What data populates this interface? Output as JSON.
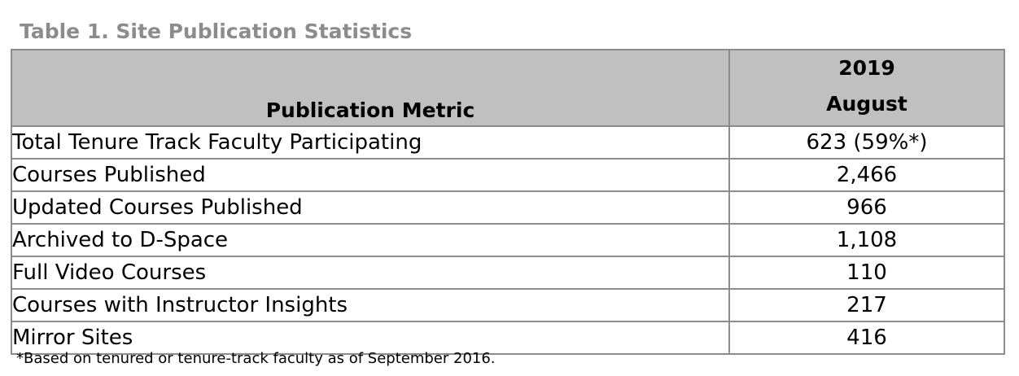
{
  "caption": "Table 1. Site Publication Statistics",
  "table": {
    "headers": {
      "metric": "Publication Metric",
      "value_year": "2019",
      "value_month": "August"
    },
    "rows": [
      {
        "metric": "Total Tenure Track Faculty Participating",
        "value": "623 (59%*)"
      },
      {
        "metric": "Courses Published",
        "value": "2,466"
      },
      {
        "metric": "Updated Courses Published",
        "value": "966"
      },
      {
        "metric": "Archived to D-Space",
        "value": "1,108"
      },
      {
        "metric": "Full Video Courses",
        "value": "110"
      },
      {
        "metric": "Courses with Instructor Insights",
        "value": "217"
      },
      {
        "metric": "Mirror Sites",
        "value": "416"
      }
    ]
  },
  "footnote": "*Based on tenured or tenure-track faculty as of September 2016.",
  "colors": {
    "caption": "#8c8c8c",
    "header_bg": "#c0c0c0",
    "border": "#8c8c8c"
  }
}
